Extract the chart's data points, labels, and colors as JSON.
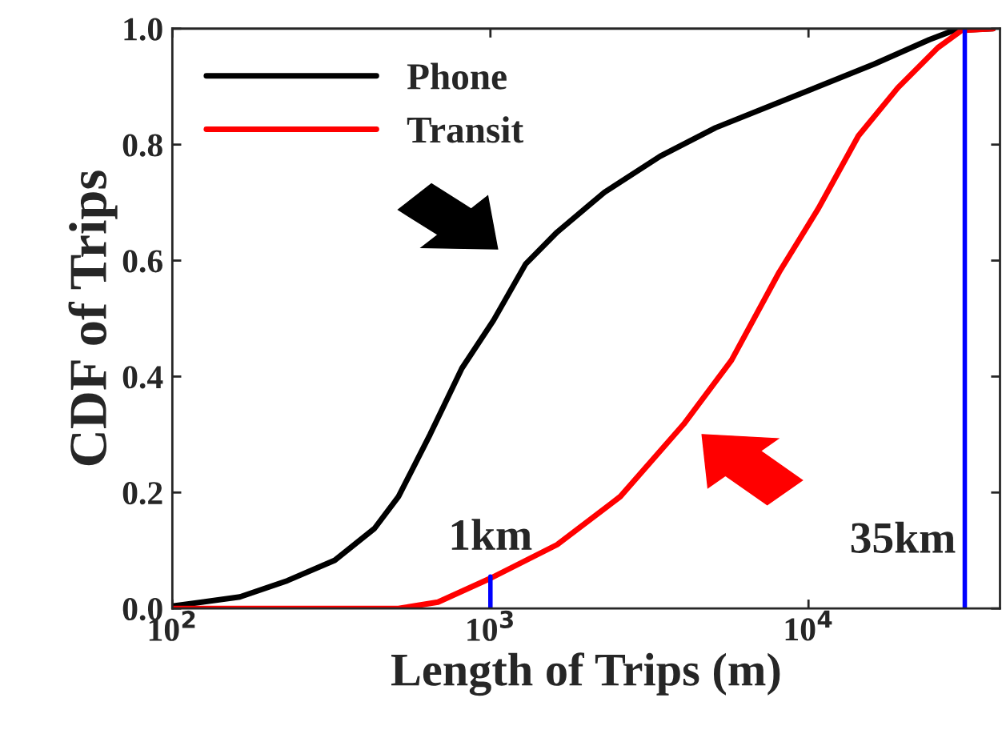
{
  "chart_data": {
    "type": "line",
    "xlabel": "Length of Trips (m)",
    "ylabel": "CDF of Trips",
    "log": "x",
    "grid": false,
    "legend": "top left",
    "marker": "none",
    "line_style": "solid",
    "xlim": [
      100,
      40000
    ],
    "xticks": [
      {
        "value": 100,
        "label": "10$^{2}$"
      },
      {
        "value": 1000,
        "label": "10$^{3}$"
      },
      {
        "value": 10000,
        "label": "10$^{4}$"
      }
    ],
    "ylim": [
      0,
      1.0
    ],
    "yticks": [
      {
        "value": 0,
        "label": "0.0"
      },
      {
        "value": 0.2,
        "label": "0.2"
      },
      {
        "value": 0.4,
        "label": "0.4"
      },
      {
        "value": 0.6,
        "label": "0.6"
      },
      {
        "value": 0.8,
        "label": "0.8"
      },
      {
        "value": 1.0,
        "label": "1.0"
      }
    ],
    "series": [
      {
        "name": "Phone",
        "color": "#000000",
        "x": [
          100,
          163,
          230,
          324,
          432,
          514,
          646,
          813,
          1023,
          1290,
          1620,
          2285,
          3420,
          5100,
          9080,
          16100,
          24000,
          28600,
          38000
        ],
        "values": [
          0.004,
          0.02,
          0.048,
          0.083,
          0.138,
          0.193,
          0.3,
          0.414,
          0.497,
          0.594,
          0.649,
          0.718,
          0.78,
          0.829,
          0.884,
          0.939,
          0.981,
          0.997,
          1.0
        ]
      },
      {
        "name": "Transit",
        "color": "#ff0000",
        "x": [
          100,
          514,
          684,
          1000,
          1620,
          2560,
          4055,
          5725,
          8090,
          10770,
          14350,
          19100,
          25500,
          30300,
          38000
        ],
        "values": [
          0,
          0,
          0.011,
          0.052,
          0.11,
          0.193,
          0.318,
          0.428,
          0.58,
          0.691,
          0.815,
          0.898,
          0.967,
          0.997,
          1.0
        ]
      },
      {
        "color": "#0000ff",
        "x": [
          1000,
          1000
        ],
        "values": [
          0,
          0.055
        ]
      }
    ],
    "ref_lines": [
      {
        "axis": "x",
        "value": 31000,
        "label": "35km",
        "color": "#0000ff"
      }
    ],
    "annotations": [
      {
        "text": "1km",
        "x": 1000,
        "y": 0.055
      }
    ]
  }
}
